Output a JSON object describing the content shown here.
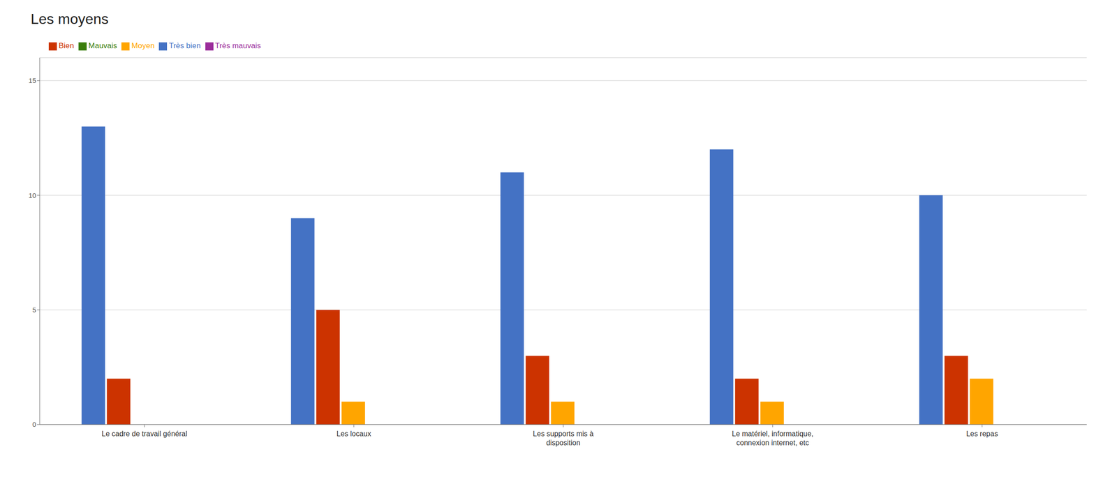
{
  "chart_data": {
    "type": "bar",
    "title": "Les moyens",
    "categories": [
      "Le cadre de travail général",
      "Les locaux",
      "Les supports mis à\ndisposition",
      "Le matériel, informatique,\nconnexion internet, etc",
      "Les repas"
    ],
    "series": [
      {
        "name": "Très bien",
        "color": "#4472C4",
        "values": [
          13,
          9,
          11,
          12,
          10
        ]
      },
      {
        "name": "Bien",
        "color": "#CC3300",
        "values": [
          2,
          5,
          3,
          2,
          3
        ]
      },
      {
        "name": "Moyen",
        "color": "#FFA500",
        "values": [
          0,
          1,
          1,
          1,
          2
        ]
      },
      {
        "name": "Mauvais",
        "color": "#3A7D0A",
        "values": [
          0,
          0,
          0,
          0,
          0
        ]
      },
      {
        "name": "Très mauvais",
        "color": "#9B2D9B",
        "values": [
          0,
          0,
          0,
          0,
          0
        ]
      }
    ],
    "ylim": [
      0,
      16
    ],
    "yticks": [
      0,
      5,
      10,
      15
    ],
    "grid": true,
    "legend": "upper left"
  }
}
